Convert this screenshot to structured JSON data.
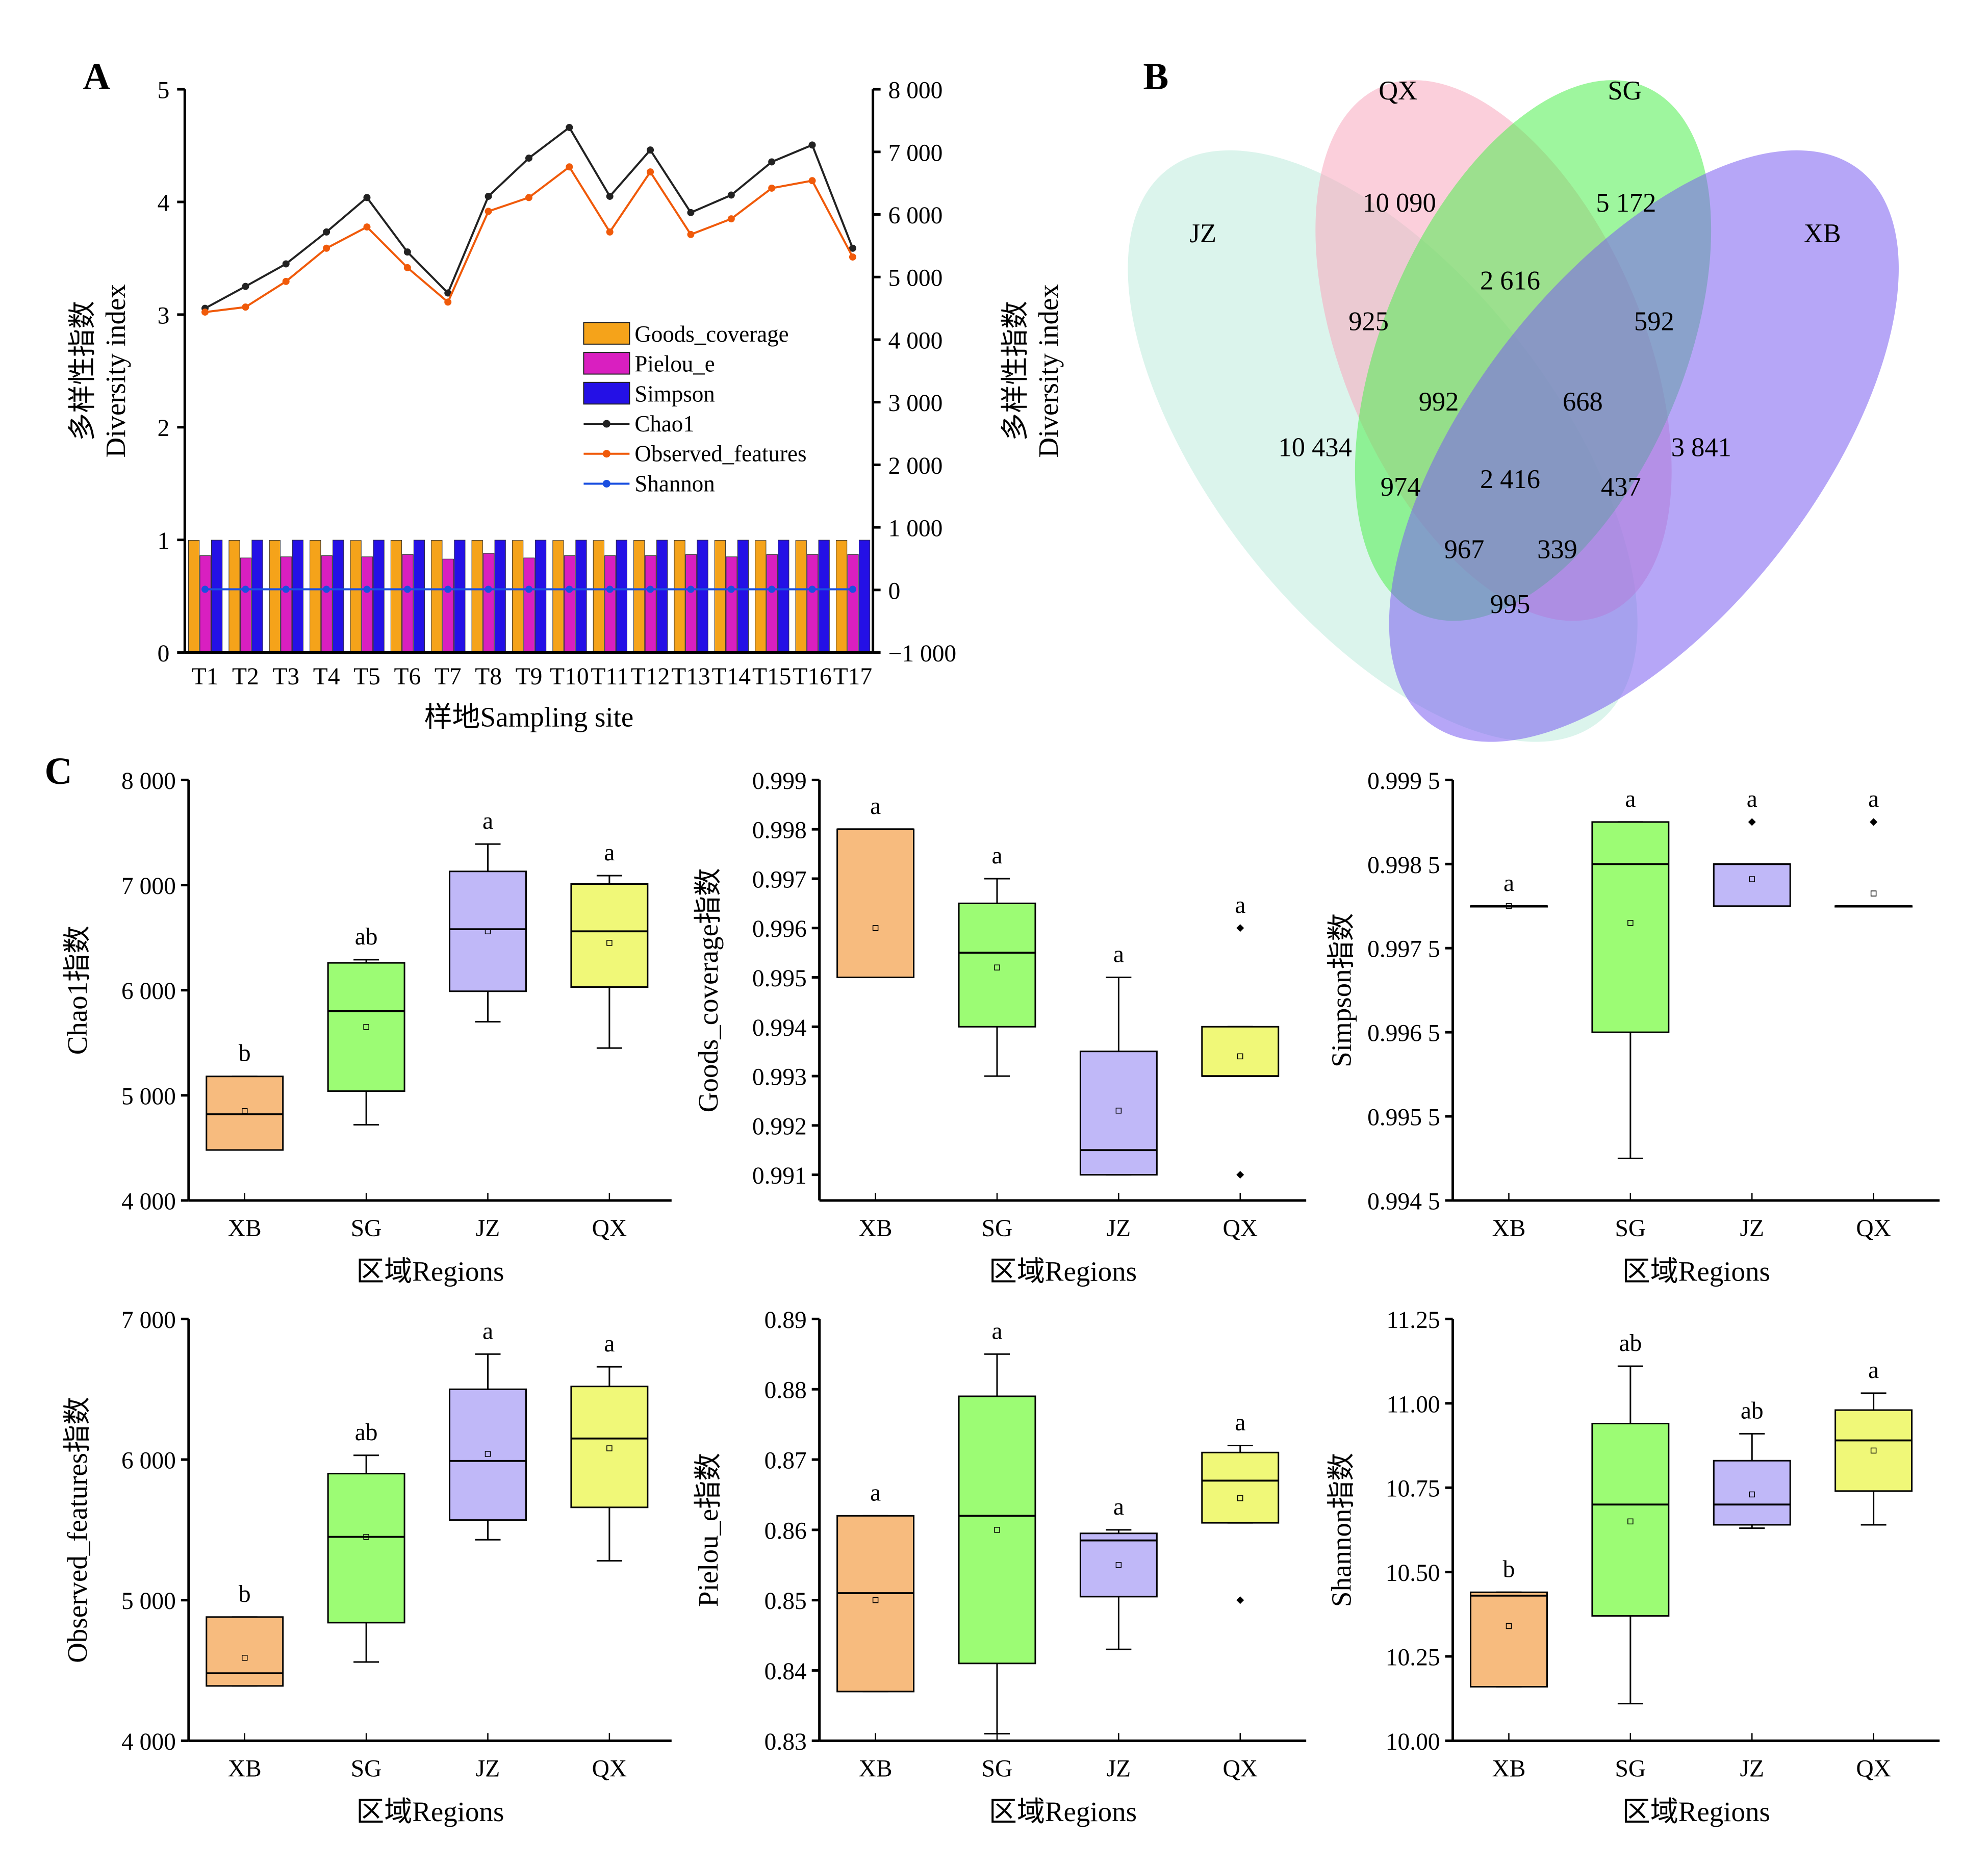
{
  "panels": {
    "a": "A",
    "b": "B",
    "c": "C"
  },
  "chart_data": [
    {
      "type": "bar+line",
      "id": "A",
      "categories": [
        "T1",
        "T2",
        "T3",
        "T4",
        "T5",
        "T6",
        "T7",
        "T8",
        "T9",
        "T10",
        "T11",
        "T12",
        "T13",
        "T14",
        "T15",
        "T16",
        "T17"
      ],
      "xlabel": "样地Sampling site",
      "ylabel_left": [
        "多样性指数",
        "Diversity index"
      ],
      "ylabel_right": [
        "多样性指数",
        "Diversity index"
      ],
      "ylim_left": [
        0,
        5
      ],
      "yticks_left": [
        "0",
        "1",
        "2",
        "3",
        "4",
        "5"
      ],
      "ylim_right": [
        -1000,
        8000
      ],
      "yticks_right": [
        "−1 000",
        "0",
        "1 000",
        "2 000",
        "3 000",
        "4 000",
        "5 000",
        "6 000",
        "7 000",
        "8 000"
      ],
      "legend_position": "center-right",
      "bar_series": [
        {
          "name": "Goods_coverage",
          "color": "#f5a31a",
          "axis": "left",
          "values": [
            0.996,
            0.996,
            0.996,
            0.996,
            0.995,
            0.996,
            0.996,
            0.996,
            0.995,
            0.995,
            0.995,
            0.996,
            0.996,
            0.996,
            0.995,
            0.995,
            0.996
          ]
        },
        {
          "name": "Pielou_e",
          "color": "#d91fc0",
          "axis": "left",
          "values": [
            0.86,
            0.84,
            0.85,
            0.86,
            0.85,
            0.87,
            0.83,
            0.88,
            0.84,
            0.86,
            0.86,
            0.86,
            0.87,
            0.85,
            0.87,
            0.87,
            0.87
          ]
        },
        {
          "name": "Simpson",
          "color": "#2410e6",
          "axis": "left",
          "values": [
            0.998,
            0.998,
            0.998,
            0.998,
            0.998,
            0.998,
            0.998,
            0.998,
            0.998,
            0.998,
            0.998,
            0.998,
            0.998,
            0.998,
            0.998,
            0.998,
            0.998
          ]
        }
      ],
      "line_series": [
        {
          "name": "Chao1",
          "color": "#222222",
          "axis": "right",
          "values": [
            4500,
            4850,
            5210,
            5720,
            6270,
            5400,
            4745,
            6290,
            6900,
            7390,
            6290,
            7030,
            6030,
            6310,
            6840,
            7110,
            5460
          ]
        },
        {
          "name": "Observed_features",
          "color": "#f05a0a",
          "axis": "right",
          "values": [
            4440,
            4520,
            4930,
            5460,
            5800,
            5150,
            4600,
            6050,
            6270,
            6760,
            5720,
            6680,
            5680,
            5930,
            6420,
            6540,
            5320
          ]
        },
        {
          "name": "Shannon",
          "color": "#1a4fe0",
          "axis": "right",
          "values": [
            10.3,
            10.4,
            10.4,
            10.5,
            10.6,
            10.5,
            10.3,
            10.7,
            10.6,
            10.8,
            10.6,
            10.7,
            10.6,
            10.7,
            10.8,
            10.8,
            10.6
          ]
        }
      ]
    },
    {
      "type": "venn",
      "id": "B",
      "sets": [
        {
          "name": "JZ",
          "color": "#bdebdc"
        },
        {
          "name": "QX",
          "color": "#f7a8bd"
        },
        {
          "name": "SG",
          "color": "#4fee4f"
        },
        {
          "name": "XB",
          "color": "#7a5cf0"
        }
      ],
      "regions": [
        {
          "sets": "QX",
          "value": "10 090"
        },
        {
          "sets": "SG",
          "value": "5 172"
        },
        {
          "sets": "QX∩SG",
          "value": "2 616"
        },
        {
          "sets": "JZ∩QX",
          "value": "925"
        },
        {
          "sets": "SG∩XB",
          "value": "592"
        },
        {
          "sets": "JZ∩QX∩SG",
          "value": "992"
        },
        {
          "sets": "QX∩SG∩XB",
          "value": "668"
        },
        {
          "sets": "JZ",
          "value": "10 434"
        },
        {
          "sets": "XB",
          "value": "3 841"
        },
        {
          "sets": "JZ∩SG",
          "value": "974"
        },
        {
          "sets": "JZ∩QX∩SG∩XB",
          "value": "2 416"
        },
        {
          "sets": "QX∩XB",
          "value": "437"
        },
        {
          "sets": "JZ∩SG∩XB",
          "value": "967"
        },
        {
          "sets": "JZ∩QX∩XB",
          "value": "339"
        },
        {
          "sets": "JZ∩XB",
          "value": "995"
        }
      ]
    },
    {
      "type": "box",
      "id": "C1",
      "ylabel": "Chao1指数",
      "xlabel": "区域Regions",
      "ylim": [
        4000,
        8000
      ],
      "yticks": [
        [
          4000,
          "4 000"
        ],
        [
          5000,
          "5 000"
        ],
        [
          6000,
          "6 000"
        ],
        [
          7000,
          "7 000"
        ],
        [
          8000,
          "8 000"
        ]
      ],
      "categories": [
        "XB",
        "SG",
        "JZ",
        "QX"
      ],
      "boxes": [
        {
          "min": 4480,
          "q1": 4480,
          "median": 4820,
          "q3": 5180,
          "max": 5180,
          "mean": 4850,
          "outliers": [],
          "letter": "b"
        },
        {
          "min": 4720,
          "q1": 5040,
          "median": 5800,
          "q3": 6260,
          "max": 6290,
          "mean": 5650,
          "outliers": [],
          "letter": "ab"
        },
        {
          "min": 5700,
          "q1": 5990,
          "median": 6580,
          "q3": 7130,
          "max": 7390,
          "mean": 6560,
          "outliers": [],
          "letter": "a"
        },
        {
          "min": 5450,
          "q1": 6030,
          "median": 6560,
          "q3": 7010,
          "max": 7090,
          "mean": 6450,
          "outliers": [],
          "letter": "a"
        }
      ]
    },
    {
      "type": "box",
      "id": "C2",
      "ylabel": "Goods_coverage指数",
      "xlabel": "区域Regions",
      "ylim": [
        0.99048,
        0.999
      ],
      "yticks": [
        [
          0.991,
          "0.991"
        ],
        [
          0.992,
          "0.992"
        ],
        [
          0.993,
          "0.993"
        ],
        [
          0.994,
          "0.994"
        ],
        [
          0.995,
          "0.995"
        ],
        [
          0.996,
          "0.996"
        ],
        [
          0.997,
          "0.997"
        ],
        [
          0.998,
          "0.998"
        ],
        [
          0.999,
          "0.999"
        ]
      ],
      "categories": [
        "XB",
        "SG",
        "JZ",
        "QX"
      ],
      "boxes": [
        {
          "min": 0.995,
          "q1": 0.995,
          "median": 0.998,
          "q3": 0.998,
          "max": 0.998,
          "mean": 0.996,
          "outliers": [],
          "letter": "a"
        },
        {
          "min": 0.993,
          "q1": 0.994,
          "median": 0.9955,
          "q3": 0.9965,
          "max": 0.997,
          "mean": 0.9952,
          "outliers": [],
          "letter": "a"
        },
        {
          "min": 0.991,
          "q1": 0.991,
          "median": 0.9915,
          "q3": 0.9935,
          "max": 0.995,
          "mean": 0.9923,
          "outliers": [],
          "letter": "a"
        },
        {
          "min": 0.993,
          "q1": 0.993,
          "median": 0.993,
          "q3": 0.994,
          "max": 0.994,
          "mean": 0.9934,
          "outliers": [
            0.996,
            0.991
          ],
          "letter": "a"
        }
      ]
    },
    {
      "type": "box",
      "id": "C3",
      "ylabel": "Simpson指数",
      "xlabel": "区域Regions",
      "ylim": [
        0.9945,
        0.9995
      ],
      "yticks": [
        [
          0.9945,
          "0.994 5"
        ],
        [
          0.9955,
          "0.995 5"
        ],
        [
          0.9965,
          "0.996 5"
        ],
        [
          0.9975,
          "0.997 5"
        ],
        [
          0.9985,
          "0.998 5"
        ],
        [
          0.9995,
          "0.999 5"
        ]
      ],
      "categories": [
        "XB",
        "SG",
        "JZ",
        "QX"
      ],
      "boxes": [
        {
          "min": 0.998,
          "q1": 0.998,
          "median": 0.998,
          "q3": 0.998,
          "max": 0.998,
          "mean": 0.998,
          "outliers": [],
          "letter": "a"
        },
        {
          "min": 0.995,
          "q1": 0.9965,
          "median": 0.9985,
          "q3": 0.999,
          "max": 0.999,
          "mean": 0.9978,
          "outliers": [],
          "letter": "a"
        },
        {
          "min": 0.998,
          "q1": 0.998,
          "median": 0.9985,
          "q3": 0.9985,
          "max": 0.9985,
          "mean": 0.99832,
          "outliers": [
            0.999
          ],
          "letter": "a"
        },
        {
          "min": 0.998,
          "q1": 0.998,
          "median": 0.998,
          "q3": 0.998,
          "max": 0.998,
          "mean": 0.99815,
          "outliers": [
            0.999
          ],
          "letter": "a"
        }
      ]
    },
    {
      "type": "box",
      "id": "C4",
      "ylabel": "Observed_features指数",
      "xlabel": "区域Regions",
      "ylim": [
        4000,
        7000
      ],
      "yticks": [
        [
          4000,
          "4 000"
        ],
        [
          5000,
          "5 000"
        ],
        [
          6000,
          "6 000"
        ],
        [
          7000,
          "7 000"
        ]
      ],
      "categories": [
        "XB",
        "SG",
        "JZ",
        "QX"
      ],
      "boxes": [
        {
          "min": 4390,
          "q1": 4390,
          "median": 4480,
          "q3": 4880,
          "max": 4880,
          "mean": 4590,
          "outliers": [],
          "letter": "b"
        },
        {
          "min": 4560,
          "q1": 4840,
          "median": 5450,
          "q3": 5900,
          "max": 6030,
          "mean": 5450,
          "outliers": [],
          "letter": "ab"
        },
        {
          "min": 5430,
          "q1": 5570,
          "median": 5990,
          "q3": 6500,
          "max": 6750,
          "mean": 6040,
          "outliers": [],
          "letter": "a"
        },
        {
          "min": 5280,
          "q1": 5660,
          "median": 6150,
          "q3": 6520,
          "max": 6660,
          "mean": 6080,
          "outliers": [],
          "letter": "a"
        }
      ]
    },
    {
      "type": "box",
      "id": "C5",
      "ylabel": "Pielou_e指数",
      "xlabel": "区域Regions",
      "ylim": [
        0.83,
        0.89
      ],
      "yticks": [
        [
          0.83,
          "0.83"
        ],
        [
          0.84,
          "0.84"
        ],
        [
          0.85,
          "0.85"
        ],
        [
          0.86,
          "0.86"
        ],
        [
          0.87,
          "0.87"
        ],
        [
          0.88,
          "0.88"
        ],
        [
          0.89,
          "0.89"
        ]
      ],
      "categories": [
        "XB",
        "SG",
        "JZ",
        "QX"
      ],
      "boxes": [
        {
          "min": 0.837,
          "q1": 0.837,
          "median": 0.851,
          "q3": 0.862,
          "max": 0.862,
          "mean": 0.85,
          "outliers": [],
          "letter": "a"
        },
        {
          "min": 0.831,
          "q1": 0.841,
          "median": 0.862,
          "q3": 0.879,
          "max": 0.885,
          "mean": 0.86,
          "outliers": [],
          "letter": "a"
        },
        {
          "min": 0.843,
          "q1": 0.8505,
          "median": 0.8585,
          "q3": 0.8595,
          "max": 0.86,
          "mean": 0.855,
          "outliers": [],
          "letter": "a"
        },
        {
          "min": 0.861,
          "q1": 0.861,
          "median": 0.867,
          "q3": 0.871,
          "max": 0.872,
          "mean": 0.8645,
          "outliers": [
            0.85
          ],
          "letter": "a"
        }
      ]
    },
    {
      "type": "box",
      "id": "C6",
      "ylabel": "Shannon指数",
      "xlabel": "区域Regions",
      "ylim": [
        10,
        11.25
      ],
      "yticks": [
        [
          10,
          "10.00"
        ],
        [
          10.25,
          "10.25"
        ],
        [
          10.5,
          "10.50"
        ],
        [
          10.75,
          "10.75"
        ],
        [
          11,
          "11.00"
        ],
        [
          11.25,
          "11.25"
        ]
      ],
      "categories": [
        "XB",
        "SG",
        "JZ",
        "QX"
      ],
      "boxes": [
        {
          "min": 10.16,
          "q1": 10.16,
          "median": 10.43,
          "q3": 10.44,
          "max": 10.44,
          "mean": 10.34,
          "outliers": [],
          "letter": "b"
        },
        {
          "min": 10.11,
          "q1": 10.37,
          "median": 10.7,
          "q3": 10.94,
          "max": 11.11,
          "mean": 10.65,
          "outliers": [],
          "letter": "ab"
        },
        {
          "min": 10.63,
          "q1": 10.64,
          "median": 10.7,
          "q3": 10.83,
          "max": 10.91,
          "mean": 10.73,
          "outliers": [],
          "letter": "ab"
        },
        {
          "min": 10.64,
          "q1": 10.74,
          "median": 10.89,
          "q3": 10.98,
          "max": 11.03,
          "mean": 10.86,
          "outliers": [],
          "letter": "a"
        }
      ]
    }
  ],
  "box_colors": {
    "XB": "#f7bb7e",
    "SG": "#9cfc74",
    "JZ": "#c0b8f8",
    "QX": "#f0f878"
  }
}
